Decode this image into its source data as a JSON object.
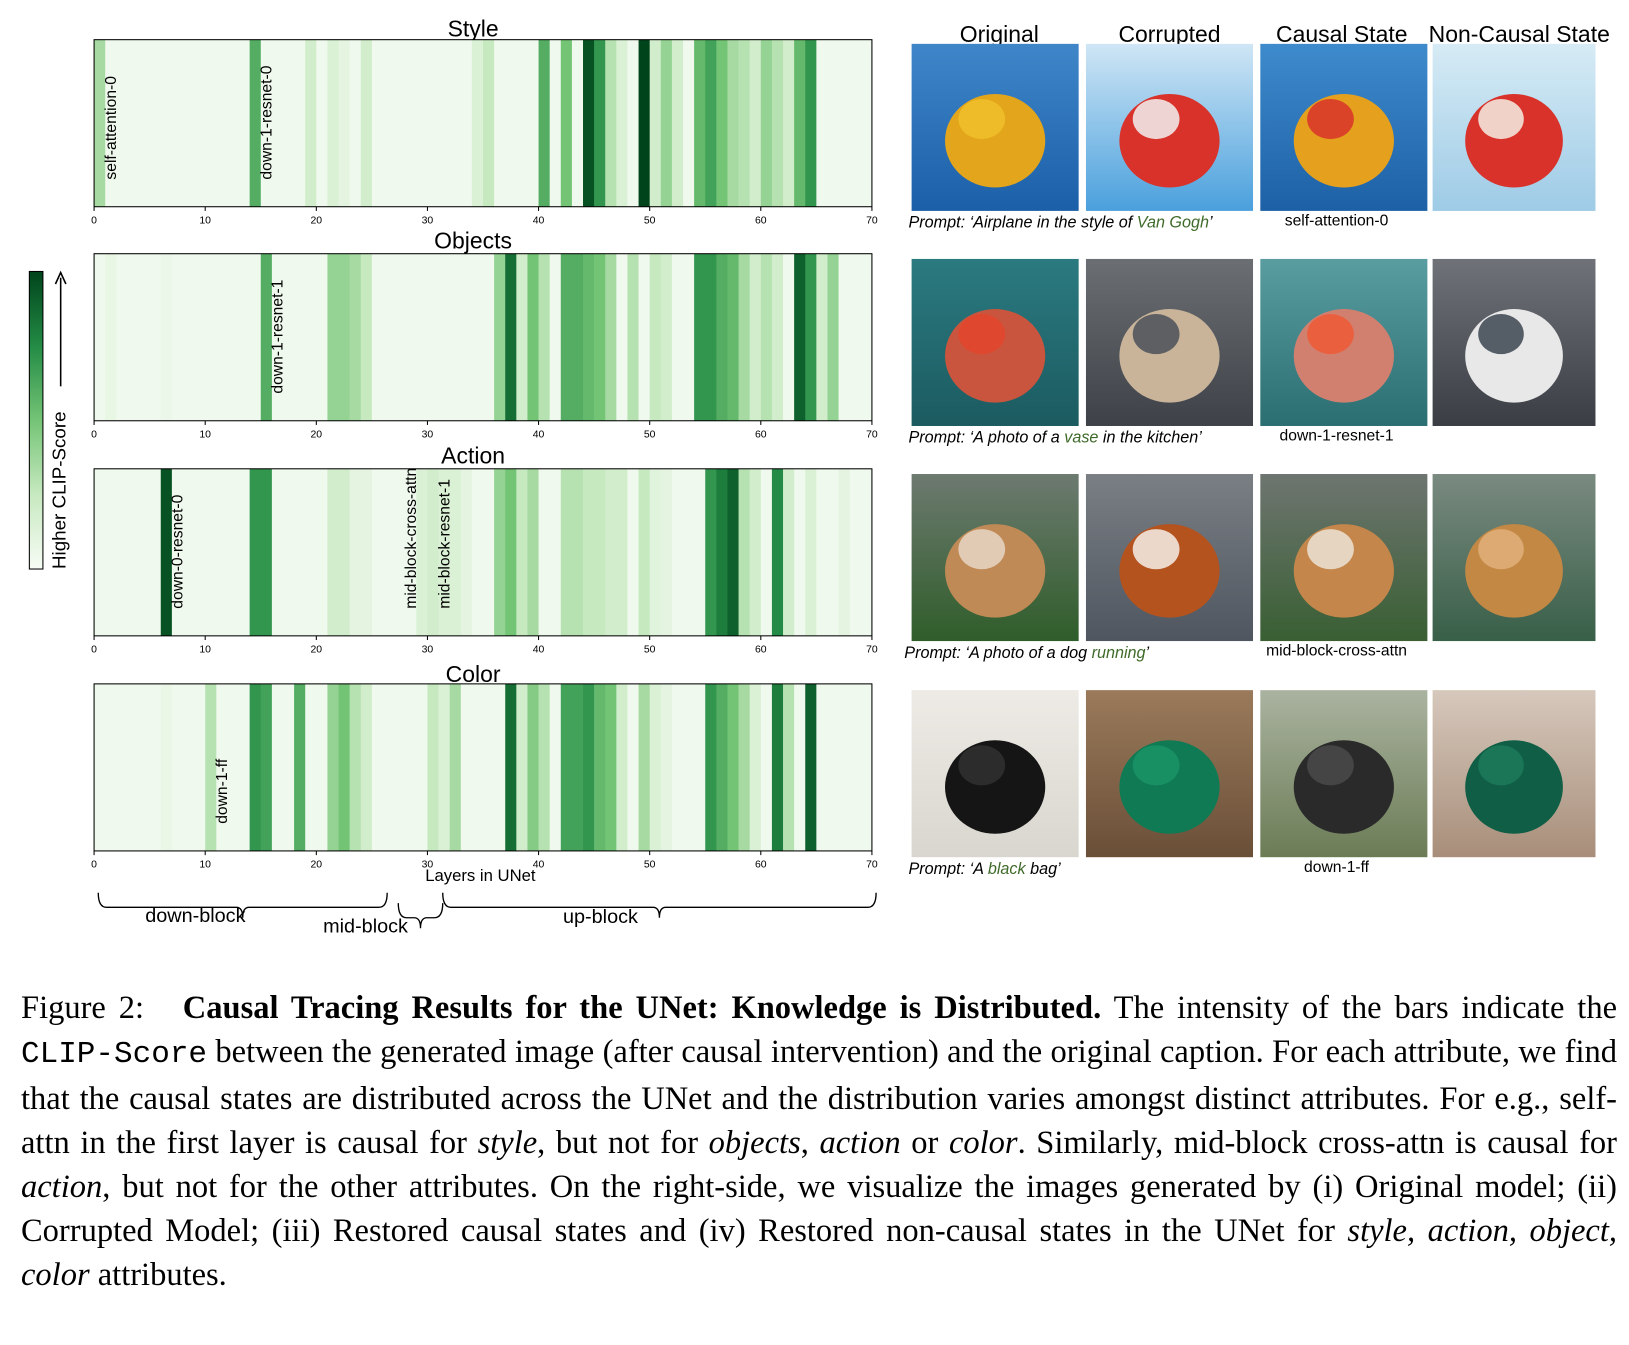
{
  "chart_data": [
    {
      "type": "heatmap",
      "title": "Style",
      "xlim": [
        0,
        70
      ],
      "xticks": [
        0,
        10,
        20,
        30,
        40,
        50,
        60,
        70
      ],
      "clim": [
        0,
        1
      ],
      "colormap": [
        "#f7fcf5",
        "#c7e9c0",
        "#74c476",
        "#238b45",
        "#00441b"
      ],
      "values": [
        0.35,
        0.04,
        0.04,
        0.04,
        0.04,
        0.04,
        0.04,
        0.04,
        0.04,
        0.04,
        0.04,
        0.04,
        0.04,
        0.04,
        0.6,
        0.04,
        0.04,
        0.04,
        0.04,
        0.2,
        0.04,
        0.15,
        0.1,
        0.04,
        0.2,
        0.04,
        0.04,
        0.04,
        0.04,
        0.04,
        0.04,
        0.04,
        0.04,
        0.04,
        0.15,
        0.25,
        0.04,
        0.04,
        0.04,
        0.04,
        0.6,
        0.04,
        0.5,
        0.04,
        0.95,
        0.7,
        0.3,
        0.15,
        0.04,
        1.0,
        0.2,
        0.4,
        0.2,
        0.04,
        0.55,
        0.65,
        0.5,
        0.35,
        0.3,
        0.2,
        0.4,
        0.3,
        0.2,
        0.55,
        0.7,
        0.04,
        0.04,
        0.04,
        0.04,
        0.04
      ],
      "annotations": [
        {
          "text": "self-attention-0",
          "x": 0
        },
        {
          "text": "down-1-resnet-0",
          "x": 14
        }
      ]
    },
    {
      "type": "heatmap",
      "title": "Objects",
      "xlim": [
        0,
        70
      ],
      "xticks": [
        0,
        10,
        20,
        30,
        40,
        50,
        60,
        70
      ],
      "clim": [
        0,
        1
      ],
      "colormap": [
        "#f7fcf5",
        "#c7e9c0",
        "#74c476",
        "#238b45",
        "#00441b"
      ],
      "values": [
        0.04,
        0.08,
        0.04,
        0.04,
        0.04,
        0.04,
        0.06,
        0.04,
        0.04,
        0.04,
        0.04,
        0.04,
        0.04,
        0.04,
        0.04,
        0.6,
        0.04,
        0.04,
        0.04,
        0.04,
        0.04,
        0.4,
        0.4,
        0.35,
        0.25,
        0.04,
        0.04,
        0.04,
        0.04,
        0.04,
        0.04,
        0.04,
        0.04,
        0.04,
        0.04,
        0.04,
        0.4,
        0.85,
        0.2,
        0.5,
        0.3,
        0.04,
        0.6,
        0.6,
        0.55,
        0.5,
        0.35,
        0.04,
        0.3,
        0.04,
        0.25,
        0.2,
        0.04,
        0.04,
        0.7,
        0.7,
        0.6,
        0.55,
        0.35,
        0.2,
        0.3,
        0.2,
        0.04,
        0.9,
        0.7,
        0.2,
        0.4,
        0.04,
        0.04,
        0.04
      ],
      "annotations": [
        {
          "text": "down-1-resnet-1",
          "x": 15
        }
      ]
    },
    {
      "type": "heatmap",
      "title": "Action",
      "xlim": [
        0,
        70
      ],
      "xticks": [
        0,
        10,
        20,
        30,
        40,
        50,
        60,
        70
      ],
      "clim": [
        0,
        1
      ],
      "colormap": [
        "#f7fcf5",
        "#c7e9c0",
        "#74c476",
        "#238b45",
        "#00441b"
      ],
      "values": [
        0.04,
        0.04,
        0.04,
        0.04,
        0.04,
        0.04,
        0.95,
        0.04,
        0.04,
        0.04,
        0.04,
        0.04,
        0.04,
        0.04,
        0.7,
        0.7,
        0.04,
        0.04,
        0.04,
        0.04,
        0.04,
        0.2,
        0.2,
        0.1,
        0.1,
        0.04,
        0.04,
        0.04,
        0.04,
        0.15,
        0.2,
        0.15,
        0.15,
        0.1,
        0.04,
        0.04,
        0.4,
        0.5,
        0.25,
        0.35,
        0.04,
        0.04,
        0.3,
        0.3,
        0.25,
        0.25,
        0.2,
        0.2,
        0.04,
        0.25,
        0.12,
        0.1,
        0.04,
        0.04,
        0.04,
        0.7,
        0.8,
        0.9,
        0.3,
        0.2,
        0.04,
        0.75,
        0.2,
        0.04,
        0.15,
        0.04,
        0.04,
        0.1,
        0.04,
        0.04
      ],
      "annotations": [
        {
          "text": "down-0-resnet-0",
          "x": 6
        },
        {
          "text": "mid-block-cross-attn",
          "x": 27
        },
        {
          "text": "mid-block-resnet-1",
          "x": 30
        }
      ]
    },
    {
      "type": "heatmap",
      "title": "Color",
      "xlim": [
        0,
        70
      ],
      "xticks": [
        0,
        10,
        20,
        30,
        40,
        50,
        60,
        70
      ],
      "clim": [
        0,
        1
      ],
      "colormap": [
        "#f7fcf5",
        "#c7e9c0",
        "#74c476",
        "#238b45",
        "#00441b"
      ],
      "values": [
        0.04,
        0.04,
        0.04,
        0.04,
        0.04,
        0.04,
        0.07,
        0.04,
        0.04,
        0.04,
        0.3,
        0.04,
        0.04,
        0.04,
        0.7,
        0.65,
        0.04,
        0.04,
        0.6,
        0.04,
        0.04,
        0.4,
        0.5,
        0.3,
        0.2,
        0.04,
        0.04,
        0.04,
        0.04,
        0.04,
        0.25,
        0.15,
        0.35,
        0.04,
        0.04,
        0.04,
        0.04,
        0.85,
        0.2,
        0.45,
        0.3,
        0.04,
        0.65,
        0.65,
        0.7,
        0.55,
        0.5,
        0.2,
        0.04,
        0.35,
        0.15,
        0.1,
        0.04,
        0.04,
        0.04,
        0.7,
        0.6,
        0.5,
        0.35,
        0.15,
        0.04,
        0.8,
        0.3,
        0.04,
        0.9,
        0.04,
        0.04,
        0.04,
        0.04,
        0.04
      ],
      "annotations": [
        {
          "text": "down-1-ff",
          "x": 10
        }
      ],
      "xlabel": "Layers in UNet",
      "blocks": [
        {
          "label": "down-block",
          "range": [
            0,
            26
          ]
        },
        {
          "label": "mid-block",
          "range": [
            27,
            31
          ]
        },
        {
          "label": "up-block",
          "range": [
            31,
            70
          ]
        }
      ]
    }
  ],
  "colorbar": {
    "label": "Higher CLIP-Score"
  },
  "images": {
    "columns": [
      "Original",
      "Corrupted",
      "Causal State",
      "Non-Causal State"
    ],
    "highlight_color": "#3f6b2a",
    "rows": [
      {
        "prompt": [
          "Prompt: ‘Airplane in the style of ",
          "Van Gogh",
          "’"
        ],
        "causal_layer": "self-attention-0"
      },
      {
        "prompt": [
          "Prompt: ‘A photo of a ",
          "vase",
          " in the kitchen’"
        ],
        "causal_layer": "down-1-resnet-1"
      },
      {
        "prompt": [
          "Prompt: ‘A photo of a dog ",
          "running",
          "’"
        ],
        "causal_layer": "mid-block-cross-attn"
      },
      {
        "prompt": [
          "Prompt: ‘A ",
          "black",
          " bag’"
        ],
        "causal_layer": "down-1-ff"
      }
    ]
  },
  "caption": {
    "label": "Figure 2:",
    "title": "Causal Tracing Results for the UNet: Knowledge is Distributed.",
    "body": [
      " The intensity of the bars indicate the ",
      "CLIP-Score",
      " between the generated image (after causal intervention) and the original caption. For each attribute, we find that the causal states are distributed across the UNet and the distribution varies amongst distinct attributes. For e.g., self-attn in the first layer is causal for ",
      "style",
      ", but not for ",
      "objects",
      ", ",
      "action",
      " or ",
      "color",
      ". Similarly, mid-block cross-attn is causal for ",
      "action",
      ", but not for the other attributes. On the right-side, we visualize the images generated by (i) Original model; (ii) Corrupted Model; (iii) Restored causal states and (iv) Restored non-causal states in the UNet for ",
      "style, action, object, color",
      " attributes."
    ]
  }
}
